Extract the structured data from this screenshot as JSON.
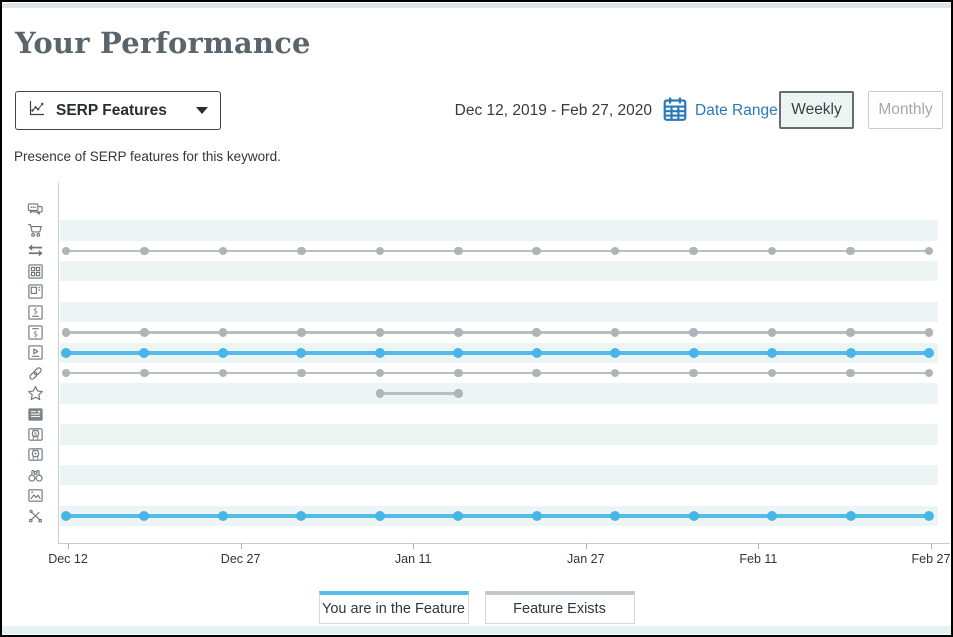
{
  "header": {
    "title": "Your Performance"
  },
  "controls": {
    "metric_dropdown": {
      "label": "SERP Features",
      "icon": "scatter-chart-icon"
    },
    "date_range_text": "Dec 12, 2019 - Feb 27, 2020",
    "date_range_link": "Date Range",
    "granularity": [
      {
        "label": "Weekly",
        "active": true
      },
      {
        "label": "Monthly",
        "active": false
      }
    ]
  },
  "subtitle": "Presence of SERP features for this keyword.",
  "chart_data": {
    "type": "line",
    "title": "SERP feature presence timeline",
    "x_tick_labels": [
      "Dec 12",
      "Dec 27",
      "Jan 11",
      "Jan 27",
      "Feb 11",
      "Feb 27"
    ],
    "points_per_row": 12,
    "x_range": [
      "Dec 12, 2019",
      "Feb 27, 2020"
    ],
    "grid": "alternating-row-bands",
    "legend_position": "bottom-center",
    "colors": {
      "in_feature": "#54bce9",
      "in_feature_dot": "#49b5e6",
      "exists": "#b8bec2",
      "exists_dot": "#aeb5b9",
      "band": "#edf4f4"
    },
    "rows": [
      {
        "icon": "chat-bubbles-icon",
        "status": "none",
        "points": []
      },
      {
        "icon": "shopping-cart-icon",
        "status": "none",
        "points": []
      },
      {
        "icon": "swap-arrows-icon",
        "status": "feature-exists",
        "points": "all"
      },
      {
        "icon": "grid-icon",
        "status": "none",
        "points": []
      },
      {
        "icon": "featured-snippet-icon",
        "status": "none",
        "points": []
      },
      {
        "icon": "dollar-underline-icon",
        "status": "none",
        "points": []
      },
      {
        "icon": "dollar-overline-icon",
        "status": "feature-exists",
        "points": "all"
      },
      {
        "icon": "video-icon",
        "status": "in-feature",
        "points": "all"
      },
      {
        "icon": "link-icon",
        "status": "feature-exists",
        "points": "all"
      },
      {
        "icon": "star-icon",
        "status": "feature-exists",
        "points": [
          4,
          5
        ]
      },
      {
        "icon": "news-icon",
        "status": "none",
        "points": []
      },
      {
        "icon": "map-pin-dollar-icon",
        "status": "none",
        "points": []
      },
      {
        "icon": "map-pin-icon",
        "status": "none",
        "points": []
      },
      {
        "icon": "binoculars-icon",
        "status": "none",
        "points": []
      },
      {
        "icon": "image-icon",
        "status": "none",
        "points": []
      },
      {
        "icon": "scissors-icon",
        "status": "in-feature",
        "points": "all"
      }
    ],
    "legend": [
      {
        "label": "You are in the Feature",
        "color": "#54bce9"
      },
      {
        "label": "Feature Exists",
        "color": "#c2c8cb"
      }
    ]
  }
}
